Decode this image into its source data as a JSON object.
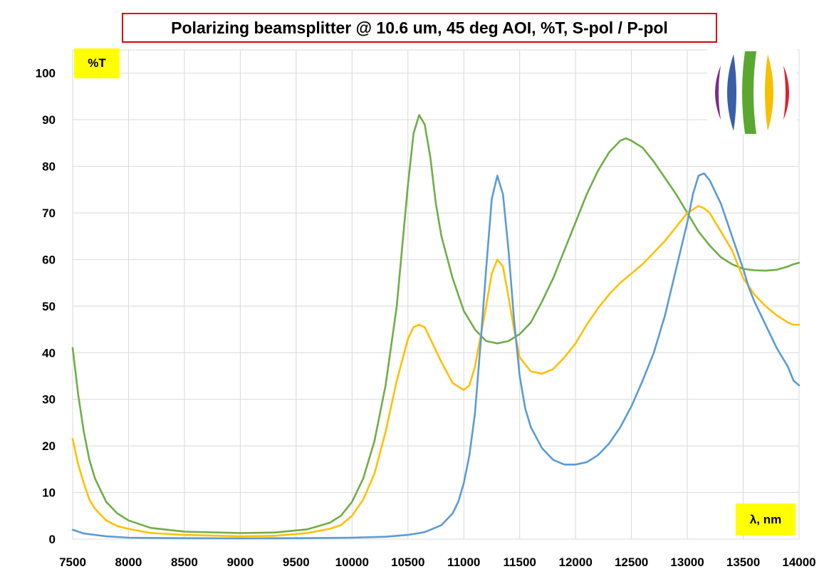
{
  "chart_data": {
    "type": "line",
    "title": "Polarizing beamsplitter @ 10.6 um, 45 deg AOI, %T, S-pol / P-pol",
    "ylabel": "%T",
    "xlabel": "λ, nm",
    "xlim": [
      7500,
      14000
    ],
    "ylim": [
      0,
      105
    ],
    "xticks": [
      "7500",
      "8000",
      "8500",
      "9000",
      "9500",
      "10000",
      "10500",
      "11000",
      "11500",
      "12000",
      "12500",
      "13000",
      "13500",
      "14000"
    ],
    "yticks": [
      "0",
      "10",
      "20",
      "30",
      "40",
      "50",
      "60",
      "70",
      "80",
      "90",
      "100"
    ],
    "grid": true,
    "series": [
      {
        "color": "#70ad47",
        "points": [
          [
            7500,
            41
          ],
          [
            7550,
            31
          ],
          [
            7600,
            23
          ],
          [
            7650,
            17
          ],
          [
            7700,
            13
          ],
          [
            7800,
            8
          ],
          [
            7900,
            5.5
          ],
          [
            8000,
            4
          ],
          [
            8200,
            2.4
          ],
          [
            8500,
            1.6
          ],
          [
            9000,
            1.3
          ],
          [
            9300,
            1.4
          ],
          [
            9600,
            2.1
          ],
          [
            9800,
            3.5
          ],
          [
            9900,
            5
          ],
          [
            10000,
            8
          ],
          [
            10100,
            13
          ],
          [
            10200,
            21
          ],
          [
            10300,
            33
          ],
          [
            10400,
            50
          ],
          [
            10450,
            63
          ],
          [
            10500,
            76
          ],
          [
            10550,
            87
          ],
          [
            10600,
            91
          ],
          [
            10650,
            89
          ],
          [
            10700,
            82
          ],
          [
            10750,
            72
          ],
          [
            10800,
            65
          ],
          [
            10900,
            56
          ],
          [
            11000,
            49
          ],
          [
            11100,
            45
          ],
          [
            11200,
            42.5
          ],
          [
            11300,
            42
          ],
          [
            11400,
            42.5
          ],
          [
            11500,
            44
          ],
          [
            11600,
            46.5
          ],
          [
            11700,
            51
          ],
          [
            11800,
            56
          ],
          [
            11900,
            62
          ],
          [
            12000,
            68
          ],
          [
            12100,
            74
          ],
          [
            12200,
            79
          ],
          [
            12300,
            83
          ],
          [
            12400,
            85.5
          ],
          [
            12450,
            86
          ],
          [
            12500,
            85.5
          ],
          [
            12600,
            84
          ],
          [
            12700,
            81
          ],
          [
            12800,
            77.5
          ],
          [
            12900,
            74
          ],
          [
            13000,
            70
          ],
          [
            13100,
            66
          ],
          [
            13200,
            63
          ],
          [
            13300,
            60.5
          ],
          [
            13400,
            59
          ],
          [
            13500,
            58
          ],
          [
            13600,
            57.7
          ],
          [
            13700,
            57.6
          ],
          [
            13800,
            57.8
          ],
          [
            13900,
            58.5
          ],
          [
            13950,
            59
          ],
          [
            14000,
            59.3
          ]
        ]
      },
      {
        "color": "#ffc000",
        "points": [
          [
            7500,
            21.5
          ],
          [
            7550,
            16
          ],
          [
            7600,
            12
          ],
          [
            7650,
            8.5
          ],
          [
            7700,
            6.5
          ],
          [
            7800,
            4
          ],
          [
            7900,
            2.8
          ],
          [
            8000,
            2.2
          ],
          [
            8200,
            1.3
          ],
          [
            8500,
            0.9
          ],
          [
            9000,
            0.6
          ],
          [
            9300,
            0.7
          ],
          [
            9600,
            1.3
          ],
          [
            9800,
            2.2
          ],
          [
            9900,
            3
          ],
          [
            10000,
            5
          ],
          [
            10100,
            8.5
          ],
          [
            10200,
            14
          ],
          [
            10300,
            23
          ],
          [
            10400,
            34
          ],
          [
            10500,
            43
          ],
          [
            10550,
            45.5
          ],
          [
            10600,
            46
          ],
          [
            10650,
            45.5
          ],
          [
            10700,
            43
          ],
          [
            10800,
            38
          ],
          [
            10900,
            33.5
          ],
          [
            11000,
            32
          ],
          [
            11050,
            33
          ],
          [
            11100,
            37
          ],
          [
            11200,
            50
          ],
          [
            11250,
            57
          ],
          [
            11300,
            60
          ],
          [
            11350,
            58.5
          ],
          [
            11400,
            52
          ],
          [
            11450,
            45
          ],
          [
            11500,
            39
          ],
          [
            11600,
            36
          ],
          [
            11700,
            35.5
          ],
          [
            11800,
            36.5
          ],
          [
            11900,
            39
          ],
          [
            12000,
            42
          ],
          [
            12100,
            46
          ],
          [
            12200,
            49.5
          ],
          [
            12300,
            52.5
          ],
          [
            12400,
            55
          ],
          [
            12500,
            57
          ],
          [
            12600,
            59
          ],
          [
            12700,
            61.5
          ],
          [
            12800,
            64
          ],
          [
            12900,
            67
          ],
          [
            13000,
            70
          ],
          [
            13100,
            71.5
          ],
          [
            13150,
            71
          ],
          [
            13200,
            70
          ],
          [
            13300,
            66
          ],
          [
            13400,
            62
          ],
          [
            13500,
            56
          ],
          [
            13600,
            52.5
          ],
          [
            13700,
            50
          ],
          [
            13800,
            48
          ],
          [
            13900,
            46.5
          ],
          [
            13950,
            46
          ],
          [
            14000,
            46
          ]
        ]
      },
      {
        "color": "#5b9bd5",
        "points": [
          [
            7500,
            2
          ],
          [
            7600,
            1.2
          ],
          [
            7800,
            0.6
          ],
          [
            8000,
            0.3
          ],
          [
            8500,
            0.2
          ],
          [
            9000,
            0.15
          ],
          [
            9500,
            0.2
          ],
          [
            10000,
            0.3
          ],
          [
            10300,
            0.5
          ],
          [
            10500,
            0.9
          ],
          [
            10650,
            1.5
          ],
          [
            10800,
            3
          ],
          [
            10900,
            5.5
          ],
          [
            10950,
            8
          ],
          [
            11000,
            12
          ],
          [
            11050,
            18
          ],
          [
            11100,
            27
          ],
          [
            11150,
            42
          ],
          [
            11200,
            58
          ],
          [
            11250,
            73
          ],
          [
            11300,
            78
          ],
          [
            11350,
            74
          ],
          [
            11400,
            62
          ],
          [
            11450,
            47
          ],
          [
            11500,
            35
          ],
          [
            11550,
            28
          ],
          [
            11600,
            24
          ],
          [
            11700,
            19.5
          ],
          [
            11800,
            17
          ],
          [
            11900,
            16
          ],
          [
            12000,
            16
          ],
          [
            12100,
            16.5
          ],
          [
            12200,
            18
          ],
          [
            12300,
            20.5
          ],
          [
            12400,
            24
          ],
          [
            12500,
            28.5
          ],
          [
            12600,
            34
          ],
          [
            12700,
            40
          ],
          [
            12800,
            48
          ],
          [
            12900,
            58
          ],
          [
            13000,
            68
          ],
          [
            13050,
            74
          ],
          [
            13100,
            78
          ],
          [
            13150,
            78.5
          ],
          [
            13200,
            77
          ],
          [
            13300,
            72
          ],
          [
            13400,
            65
          ],
          [
            13500,
            58
          ],
          [
            13550,
            54
          ],
          [
            13600,
            51
          ],
          [
            13700,
            46
          ],
          [
            13800,
            41
          ],
          [
            13900,
            37
          ],
          [
            13950,
            34
          ],
          [
            14000,
            33
          ]
        ]
      }
    ]
  }
}
